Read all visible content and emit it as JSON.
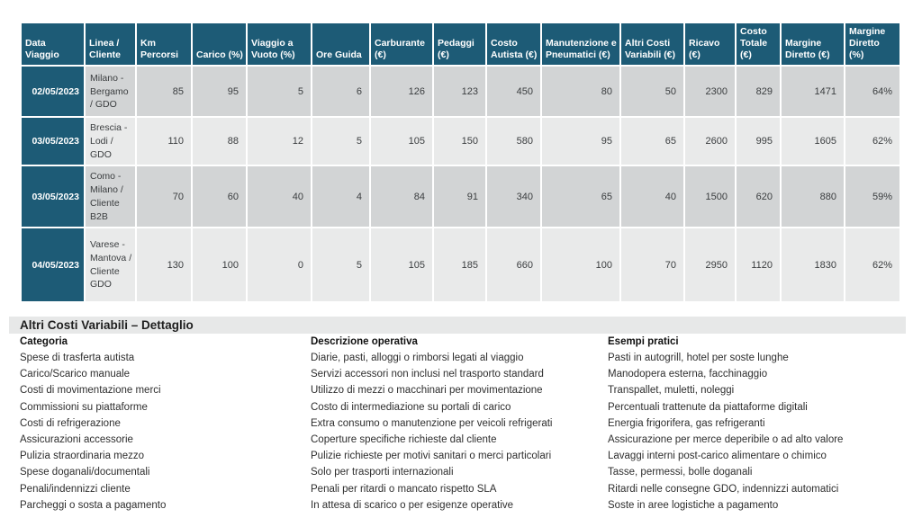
{
  "colors": {
    "header_bg": "#1d5b76",
    "row_dark": "#d2d4d5",
    "row_light": "#e9eaea",
    "bar_bg": "#e7e8e8"
  },
  "trip_table": {
    "headers": [
      "Data Viaggio",
      "Linea / Cliente",
      "Km Percorsi",
      "Carico (%)",
      "Viaggio a Vuoto (%)",
      "Ore Guida",
      "Carburante (€)",
      "Pedaggi (€)",
      "Costo Autista (€)",
      "Manutenzione e Pneumatici (€)",
      "Altri Costi Variabili (€)",
      "Ricavo (€)",
      "Costo Totale (€)",
      "Margine Diretto (€)",
      "Margine Diretto (%)"
    ],
    "rows": [
      {
        "cells": [
          "02/05/2023",
          "Milano - Bergamo / GDO",
          "85",
          "95",
          "5",
          "6",
          "126",
          "123",
          "450",
          "80",
          "50",
          "2300",
          "829",
          "1471",
          "64%"
        ]
      },
      {
        "cells": [
          "03/05/2023",
          "Brescia - Lodi / GDO",
          "110",
          "88",
          "12",
          "5",
          "105",
          "150",
          "580",
          "95",
          "65",
          "2600",
          "995",
          "1605",
          "62%"
        ]
      },
      {
        "cells": [
          "03/05/2023",
          "Como - Milano / Cliente B2B",
          "70",
          "60",
          "40",
          "4",
          "84",
          "91",
          "340",
          "65",
          "40",
          "1500",
          "620",
          "880",
          "59%"
        ]
      },
      {
        "cells": [
          "04/05/2023",
          "Varese - Mantova / Cliente GDO",
          "130",
          "100",
          "0",
          "5",
          "105",
          "185",
          "660",
          "100",
          "70",
          "2950",
          "1120",
          "1830",
          "62%"
        ]
      }
    ]
  },
  "detail": {
    "title": "Altri Costi Variabili – Dettaglio",
    "columns": [
      "Categoria",
      "Descrizione operativa",
      "Esempi pratici"
    ],
    "rows": [
      {
        "categoria": "Spese di trasferta autista",
        "descrizione": "Diarie, pasti, alloggi o rimborsi legati al viaggio",
        "esempi": "Pasti in autogrill, hotel per soste lunghe"
      },
      {
        "categoria": "Carico/Scarico manuale",
        "descrizione": "Servizi accessori non inclusi nel trasporto standard",
        "esempi": "Manodopera esterna, facchinaggio"
      },
      {
        "categoria": "Costi di movimentazione merci",
        "descrizione": "Utilizzo di mezzi o macchinari per movimentazione",
        "esempi": "Transpallet, muletti, noleggi"
      },
      {
        "categoria": "Commissioni su piattaforme",
        "descrizione": "Costo di intermediazione su portali di carico",
        "esempi": "Percentuali trattenute da piattaforme digitali"
      },
      {
        "categoria": "Costi di refrigerazione",
        "descrizione": "Extra consumo o manutenzione per veicoli refrigerati",
        "esempi": "Energia frigorifera, gas refrigeranti"
      },
      {
        "categoria": "Assicurazioni accessorie",
        "descrizione": "Coperture specifiche richieste dal cliente",
        "esempi": "Assicurazione per merce deperibile o ad alto valore"
      },
      {
        "categoria": "Pulizia straordinaria mezzo",
        "descrizione": "Pulizie richieste per motivi sanitari o merci particolari",
        "esempi": "Lavaggi interni post-carico alimentare o chimico"
      },
      {
        "categoria": "Spese doganali/documentali",
        "descrizione": "Solo per trasporti internazionali",
        "esempi": "Tasse, permessi, bolle doganali"
      },
      {
        "categoria": "Penali/indennizzi cliente",
        "descrizione": "Penali per ritardi o mancato rispetto SLA",
        "esempi": "Ritardi nelle consegne GDO, indennizzi automatici"
      },
      {
        "categoria": "Parcheggi o sosta a pagamento",
        "descrizione": "In attesa di scarico o per esigenze operative",
        "esempi": "Soste in aree logistiche a pagamento"
      }
    ]
  }
}
